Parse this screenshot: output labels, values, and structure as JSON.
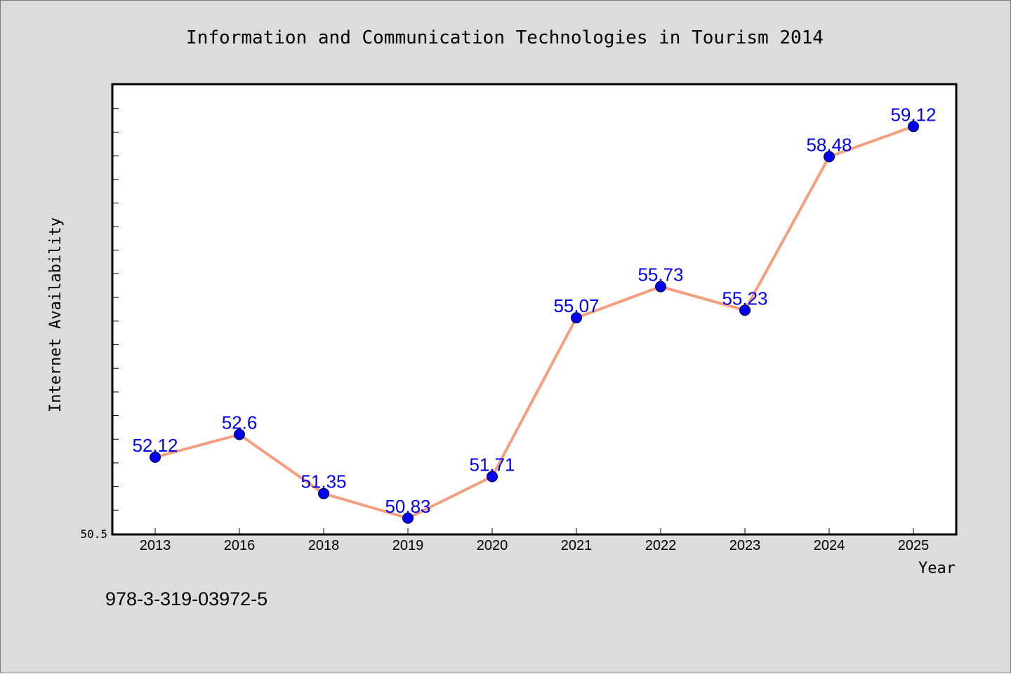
{
  "chart_data": {
    "type": "line",
    "title": "Information and Communication Technologies in Tourism 2014",
    "xlabel": "Year",
    "ylabel": "Internet Availability",
    "categories": [
      "2013",
      "2016",
      "2018",
      "2019",
      "2020",
      "2021",
      "2022",
      "2023",
      "2024",
      "2025"
    ],
    "values": [
      52.12,
      52.6,
      51.35,
      50.83,
      51.71,
      55.07,
      55.73,
      55.23,
      58.48,
      59.12
    ],
    "value_labels": [
      "52.12",
      "52.6",
      "51.35",
      "50.83",
      "51.71",
      "55.07",
      "55.73",
      "55.23",
      "58.48",
      "59.12"
    ],
    "ylim": [
      50.5,
      60.0
    ],
    "y_tick_label": "50.5",
    "grid": false,
    "legend": "none",
    "line_color": "#f4a07f",
    "marker_color": "#0000ee",
    "label_color": "#0000ee"
  },
  "footer": {
    "isbn": "978-3-319-03972-5"
  }
}
